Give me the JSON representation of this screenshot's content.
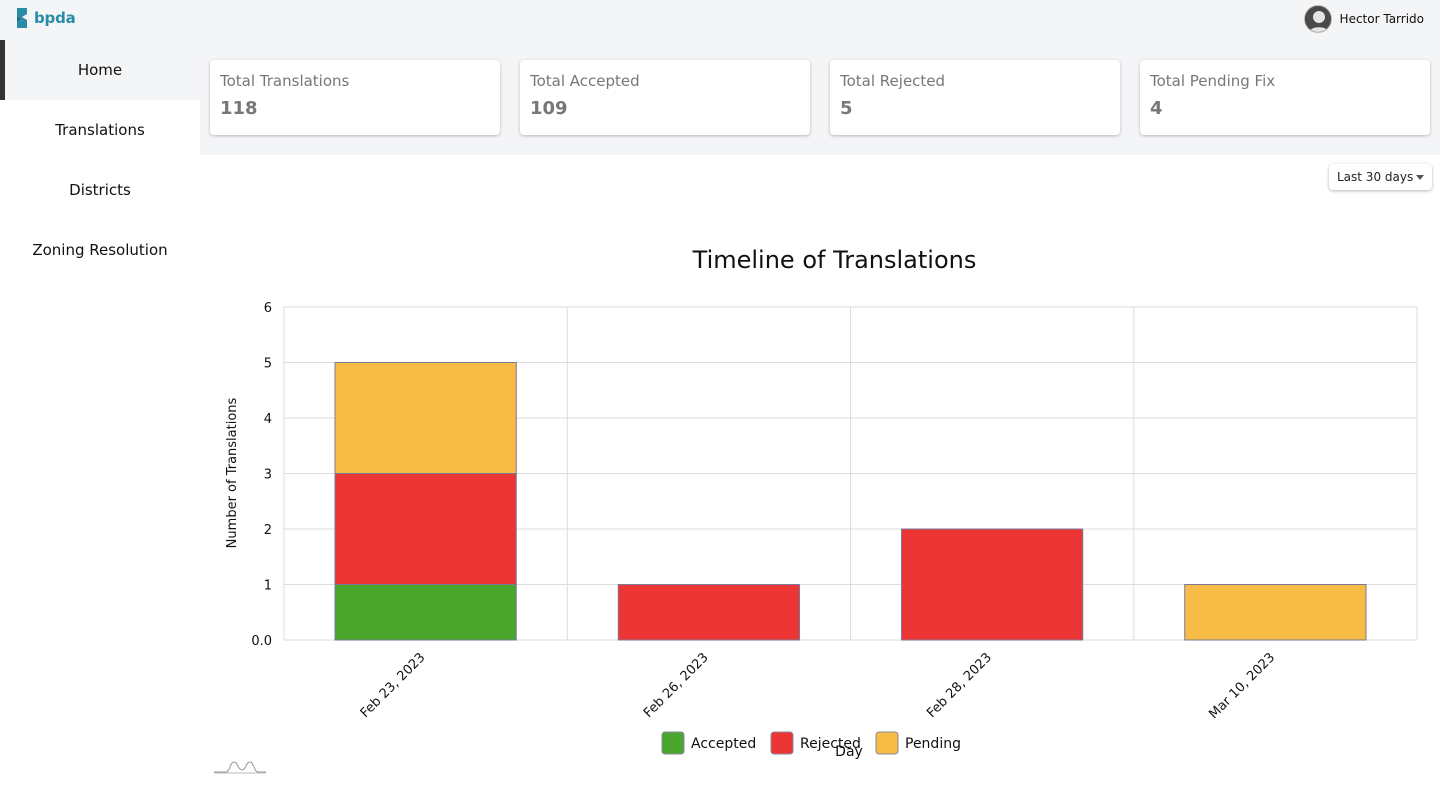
{
  "app": {
    "logo_text": "bpda",
    "user_name": "Hector Tarrido"
  },
  "sidebar": {
    "items": [
      {
        "label": "Home",
        "active": true
      },
      {
        "label": "Translations",
        "active": false
      },
      {
        "label": "Districts",
        "active": false
      },
      {
        "label": "Zoning Resolution",
        "active": false
      }
    ]
  },
  "stats": [
    {
      "label": "Total Translations",
      "value": "118"
    },
    {
      "label": "Total Accepted",
      "value": "109"
    },
    {
      "label": "Total Rejected",
      "value": "5"
    },
    {
      "label": "Total Pending Fix",
      "value": "4"
    }
  ],
  "filter": {
    "selected": "Last 30 days"
  },
  "colors": {
    "accepted": "#4aa62c",
    "rejected": "#ec3535",
    "pending": "#f7bc45",
    "grid": "#dddddd",
    "brand": "#2a8da8"
  },
  "chart_data": {
    "type": "bar",
    "stacked": true,
    "title": "Timeline of Translations",
    "xlabel": "Day",
    "ylabel": "Number of Translations",
    "ylim": [
      0,
      6
    ],
    "yticks": [
      "0.0",
      "1",
      "2",
      "3",
      "4",
      "5",
      "6"
    ],
    "categories": [
      "Feb 23, 2023",
      "Feb 26, 2023",
      "Feb 28, 2023",
      "Mar 10, 2023"
    ],
    "series": [
      {
        "name": "Accepted",
        "color": "#4aa62c",
        "values": [
          1,
          0,
          0,
          0
        ]
      },
      {
        "name": "Rejected",
        "color": "#ec3535",
        "values": [
          2,
          1,
          2,
          0
        ]
      },
      {
        "name": "Pending",
        "color": "#f7bc45",
        "values": [
          2,
          0,
          0,
          1
        ]
      }
    ],
    "legend_position": "bottom-center"
  }
}
